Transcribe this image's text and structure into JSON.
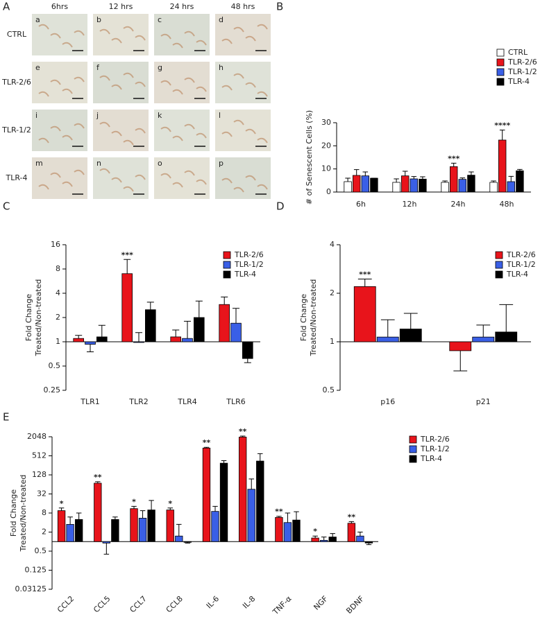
{
  "panel_a": {
    "label": "A",
    "columns": [
      "6hrs",
      "12 hrs",
      "24 hrs",
      "48 hrs"
    ],
    "rows": [
      "CTRL",
      "TLR-2/6",
      "TLR-1/2",
      "TLR-4"
    ],
    "cells": [
      "a",
      "b",
      "c",
      "d",
      "e",
      "f",
      "g",
      "h",
      "i",
      "j",
      "k",
      "l",
      "m",
      "n",
      "o",
      "p"
    ]
  },
  "chart_data": [
    {
      "type": "bar",
      "label": "B",
      "ylabel": "# of Senescent Cells (%)",
      "categories": [
        "6h",
        "12h",
        "24h",
        "48h"
      ],
      "ylim": [
        0,
        30
      ],
      "yticks": [
        0,
        10,
        20,
        30
      ],
      "yscale": "linear",
      "series": [
        {
          "name": "CTRL",
          "color": "#ffffff",
          "values": [
            4.5,
            4.2,
            4.2,
            4.2
          ],
          "errors": [
            1.5,
            1.5,
            0.6,
            0.6
          ]
        },
        {
          "name": "TLR-2/6",
          "color": "#e8141b",
          "values": [
            7.2,
            7.0,
            11.0,
            22.5
          ],
          "errors": [
            2.5,
            2.0,
            1.5,
            4.3
          ],
          "annotations": [
            null,
            null,
            "***",
            "****"
          ]
        },
        {
          "name": "TLR-1/2",
          "color": "#3a5fe6",
          "values": [
            7.0,
            5.7,
            5.5,
            4.5
          ],
          "errors": [
            1.7,
            1.0,
            0.6,
            2.3
          ]
        },
        {
          "name": "TLR-4",
          "color": "#000000",
          "values": [
            6.0,
            5.6,
            7.3,
            9.2
          ],
          "errors": [
            0,
            1.0,
            1.4,
            0.6
          ]
        }
      ]
    },
    {
      "type": "bar",
      "label": "C",
      "ylabel": [
        "Fold Change",
        "Treated/Non-treated"
      ],
      "categories": [
        "TLR1",
        "TLR2",
        "TLR4",
        "TLR6"
      ],
      "ylim": [
        0.25,
        16
      ],
      "yticks": [
        0.25,
        0.5,
        1,
        2,
        4,
        8,
        16
      ],
      "yscale": "log",
      "series": [
        {
          "name": "TLR-2/6",
          "color": "#e8141b",
          "values": [
            1.1,
            7.0,
            1.15,
            2.9
          ],
          "errors": [
            0.1,
            3.5,
            0.25,
            0.7
          ],
          "annotations": [
            null,
            "***",
            null,
            null
          ]
        },
        {
          "name": "TLR-1/2",
          "color": "#3a5fe6",
          "values": [
            0.93,
            1.0,
            1.1,
            1.7
          ],
          "errors": [
            0.18,
            0.3,
            0.7,
            0.9
          ]
        },
        {
          "name": "TLR-4",
          "color": "#000000",
          "values": [
            1.15,
            2.5,
            2.0,
            0.62
          ],
          "errors": [
            0.45,
            0.6,
            1.2,
            0.07
          ]
        }
      ]
    },
    {
      "type": "bar",
      "label": "D",
      "ylabel": [
        "Fold Change",
        "Treated/Non-treated"
      ],
      "categories": [
        "p16",
        "p21"
      ],
      "ylim": [
        0.5,
        4
      ],
      "yticks": [
        0.5,
        1,
        2,
        4
      ],
      "yscale": "log",
      "series": [
        {
          "name": "TLR-2/6",
          "color": "#e8141b",
          "values": [
            2.2,
            0.88
          ],
          "errors": [
            0.25,
            0.22
          ],
          "annotations": [
            "***",
            null
          ]
        },
        {
          "name": "TLR-1/2",
          "color": "#3a5fe6",
          "values": [
            1.07,
            1.07
          ],
          "errors": [
            0.3,
            0.2
          ]
        },
        {
          "name": "TLR-4",
          "color": "#000000",
          "values": [
            1.2,
            1.15
          ],
          "errors": [
            0.3,
            0.55
          ]
        }
      ]
    },
    {
      "type": "bar",
      "label": "E",
      "ylabel": [
        "Fold Change",
        "Treated/Non-treated"
      ],
      "categories": [
        "CCL2",
        "CCL5",
        "CCL7",
        "CCL8",
        "IL-6",
        "IL-8",
        "TNF-α",
        "NGF",
        "BDNF"
      ],
      "ylim": [
        0.03125,
        2048
      ],
      "yticks": [
        0.03125,
        0.125,
        0.5,
        2,
        8,
        32,
        128,
        512,
        2048
      ],
      "yscale": "log",
      "series": [
        {
          "name": "TLR-2/6",
          "color": "#e8141b",
          "values": [
            9.5,
            70,
            11,
            10,
            900,
            2000,
            5.8,
            1.3,
            3.8
          ],
          "errors": [
            2,
            8,
            2,
            1.5,
            50,
            150,
            0.5,
            0.2,
            0.5
          ],
          "annotations": [
            "*",
            "**",
            "*",
            "*",
            "**",
            "**",
            "**",
            "*",
            "**"
          ]
        },
        {
          "name": "TLR-1/2",
          "color": "#3a5fe6",
          "values": [
            3.5,
            0.9,
            5.5,
            1.5,
            9,
            45,
            4,
            1.1,
            1.5
          ],
          "errors": [
            2.5,
            0.5,
            4,
            2,
            4,
            50,
            4,
            0.3,
            0.5
          ]
        },
        {
          "name": "TLR-4",
          "color": "#000000",
          "values": [
            5,
            5,
            10,
            0.95,
            300,
            350,
            4.8,
            1.4,
            0.9
          ],
          "errors": [
            3,
            1,
            10,
            0.05,
            60,
            250,
            4,
            0.4,
            0.1
          ]
        }
      ]
    }
  ]
}
